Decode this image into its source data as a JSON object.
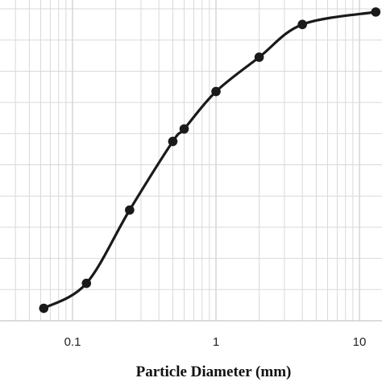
{
  "chart_data": {
    "type": "line",
    "title": "",
    "xlabel": "Particle Diameter (mm)",
    "ylabel": "",
    "x_scale": "log",
    "xlim": [
      0.01,
      13
    ],
    "x_ticks": [
      {
        "value": 0.1,
        "label": "0.1"
      },
      {
        "value": 1,
        "label": "1"
      },
      {
        "value": 10,
        "label": "10"
      }
    ],
    "ylim": [
      0,
      100
    ],
    "y_gridlines": [
      10,
      20,
      30,
      40,
      50,
      60,
      70,
      80,
      90,
      100
    ],
    "grid": true,
    "marker": "circle",
    "line_color": "#1a1a1a",
    "grid_color": "#d9d9d9",
    "series": [
      {
        "x": [
          0.063,
          0.125,
          0.25,
          0.5,
          0.6,
          1.0,
          2.0,
          4.0,
          13.0
        ],
        "y": [
          4,
          12,
          35.5,
          57.5,
          61.5,
          73.5,
          84.5,
          95,
          99
        ]
      }
    ]
  }
}
